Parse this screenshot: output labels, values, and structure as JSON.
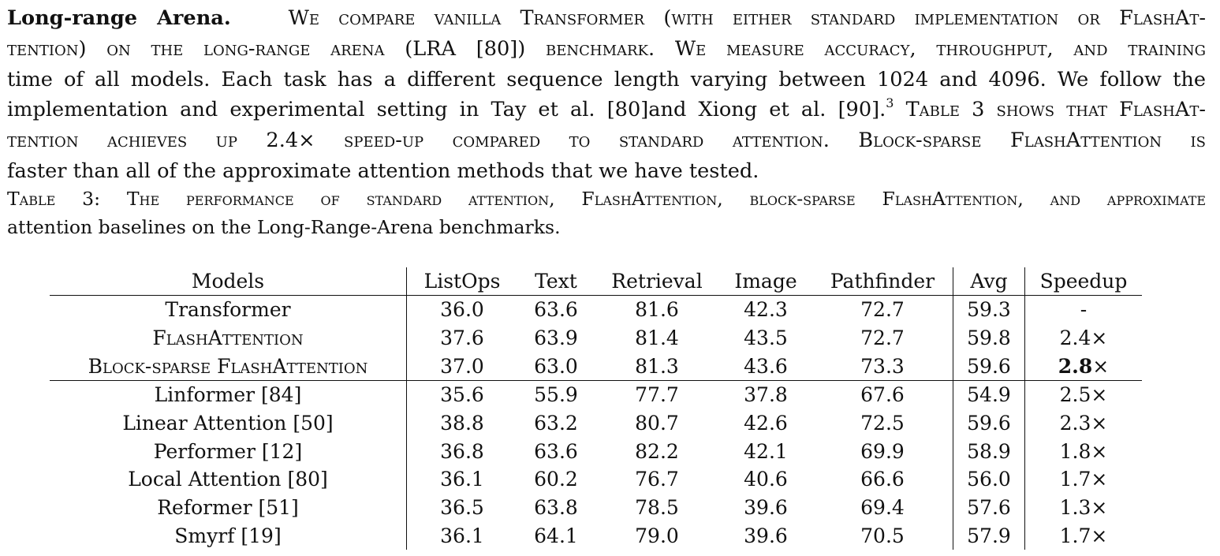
{
  "paragraph": {
    "heading": "Long-range Arena.",
    "line1_rest": "We compare vanilla Transformer (with either standard implementation or FlashAt-",
    "line2": "tention) on the long-range arena (LRA [80]) benchmark. We measure accuracy, throughput, and training",
    "line3": "time of all models. Each task has a different sequence length varying between 1024 and 4096. We follow the",
    "line4_a": "implementation and experimental setting in Tay et al. [80]and Xiong et al. [90].",
    "line4_sup": "3",
    "line4_b": "Table 3 shows that FlashAt-",
    "line5": "tention achieves up 2.4× speed-up compared to standard attention. Block-sparse FlashAttention is",
    "line6": "faster than all of the approximate attention methods that we have tested."
  },
  "caption": {
    "line1": "Table 3: The performance of standard attention, FlashAttention, block-sparse FlashAttention, and approximate",
    "line2": "attention baselines on the Long-Range-Arena benchmarks."
  },
  "table": {
    "headers": [
      "Models",
      "ListOps",
      "Text",
      "Retrieval",
      "Image",
      "Pathfinder",
      "Avg",
      "Speedup"
    ],
    "rows": [
      [
        "Transformer",
        "36.0",
        "63.6",
        "81.6",
        "42.3",
        "72.7",
        "59.3",
        "-"
      ],
      [
        "FlashAttention",
        "37.6",
        "63.9",
        "81.4",
        "43.5",
        "72.7",
        "59.8",
        "2.4×"
      ],
      [
        "Block-sparse FlashAttention",
        "37.0",
        "63.0",
        "81.3",
        "43.6",
        "73.3",
        "59.6",
        "2.8×"
      ],
      [
        "Linformer [84]",
        "35.6",
        "55.9",
        "77.7",
        "37.8",
        "67.6",
        "54.9",
        "2.5×"
      ],
      [
        "Linear Attention [50]",
        "38.8",
        "63.2",
        "80.7",
        "42.6",
        "72.5",
        "59.6",
        "2.3×"
      ],
      [
        "Performer [12]",
        "36.8",
        "63.6",
        "82.2",
        "42.1",
        "69.9",
        "58.9",
        "1.8×"
      ],
      [
        "Local Attention [80]",
        "36.1",
        "60.2",
        "76.7",
        "40.6",
        "66.6",
        "56.0",
        "1.7×"
      ],
      [
        "Reformer [51]",
        "36.5",
        "63.8",
        "78.5",
        "39.6",
        "69.4",
        "57.6",
        "1.3×"
      ],
      [
        "Smyrf [19]",
        "36.1",
        "64.1",
        "79.0",
        "39.6",
        "70.5",
        "57.9",
        "1.7×"
      ]
    ],
    "bold_cell": "2.8"
  }
}
